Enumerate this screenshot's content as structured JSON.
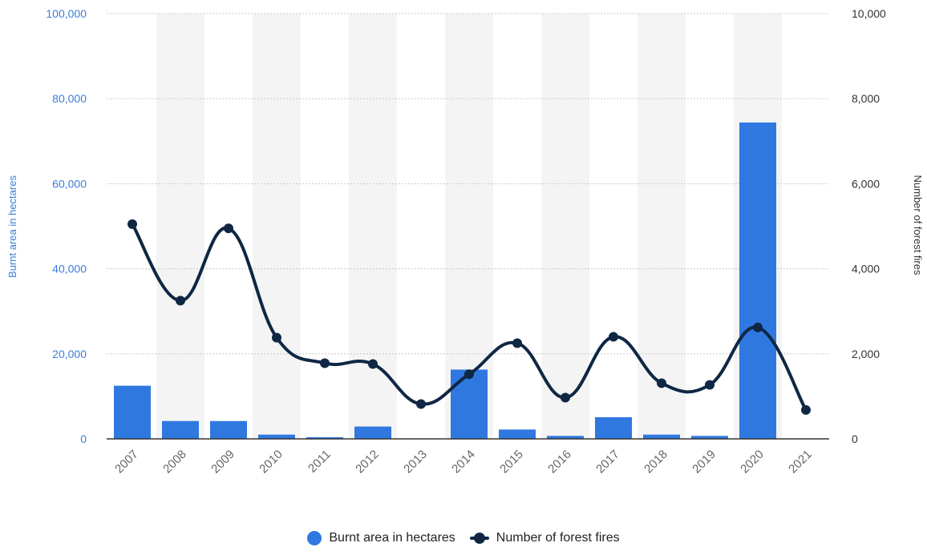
{
  "chart_data": {
    "type": "bar",
    "categories": [
      "2007",
      "2008",
      "2009",
      "2010",
      "2011",
      "2012",
      "2013",
      "2014",
      "2015",
      "2016",
      "2017",
      "2018",
      "2019",
      "2020",
      "2021"
    ],
    "series": [
      {
        "name": "Burnt area in hectares",
        "type": "bar",
        "axis": "left",
        "color": "#2f78e0",
        "values": [
          12500,
          4200,
          4200,
          1000,
          400,
          2900,
          0,
          16300,
          2200,
          700,
          5100,
          1000,
          700,
          74400,
          0
        ]
      },
      {
        "name": "Number of forest fires",
        "type": "line",
        "axis": "right",
        "color": "#0f2744",
        "values": [
          5050,
          3250,
          4950,
          2380,
          1780,
          1760,
          820,
          1520,
          2250,
          970,
          2400,
          1310,
          1270,
          2620,
          680
        ]
      }
    ],
    "y_left": {
      "label": "Burnt area in hectares",
      "ylim": [
        0,
        100000
      ],
      "ticks": [
        "0",
        "20,000",
        "40,000",
        "60,000",
        "80,000",
        "100,000"
      ]
    },
    "y_right": {
      "label": "Number of forest fires",
      "ylim": [
        0,
        10000
      ],
      "ticks": [
        "0",
        "2,000",
        "4,000",
        "6,000",
        "8,000",
        "10,000"
      ]
    },
    "grid": true,
    "legend": "bottom-center"
  },
  "legend": {
    "bar_label": "Burnt area in hectares",
    "line_label": "Number of forest fires"
  }
}
